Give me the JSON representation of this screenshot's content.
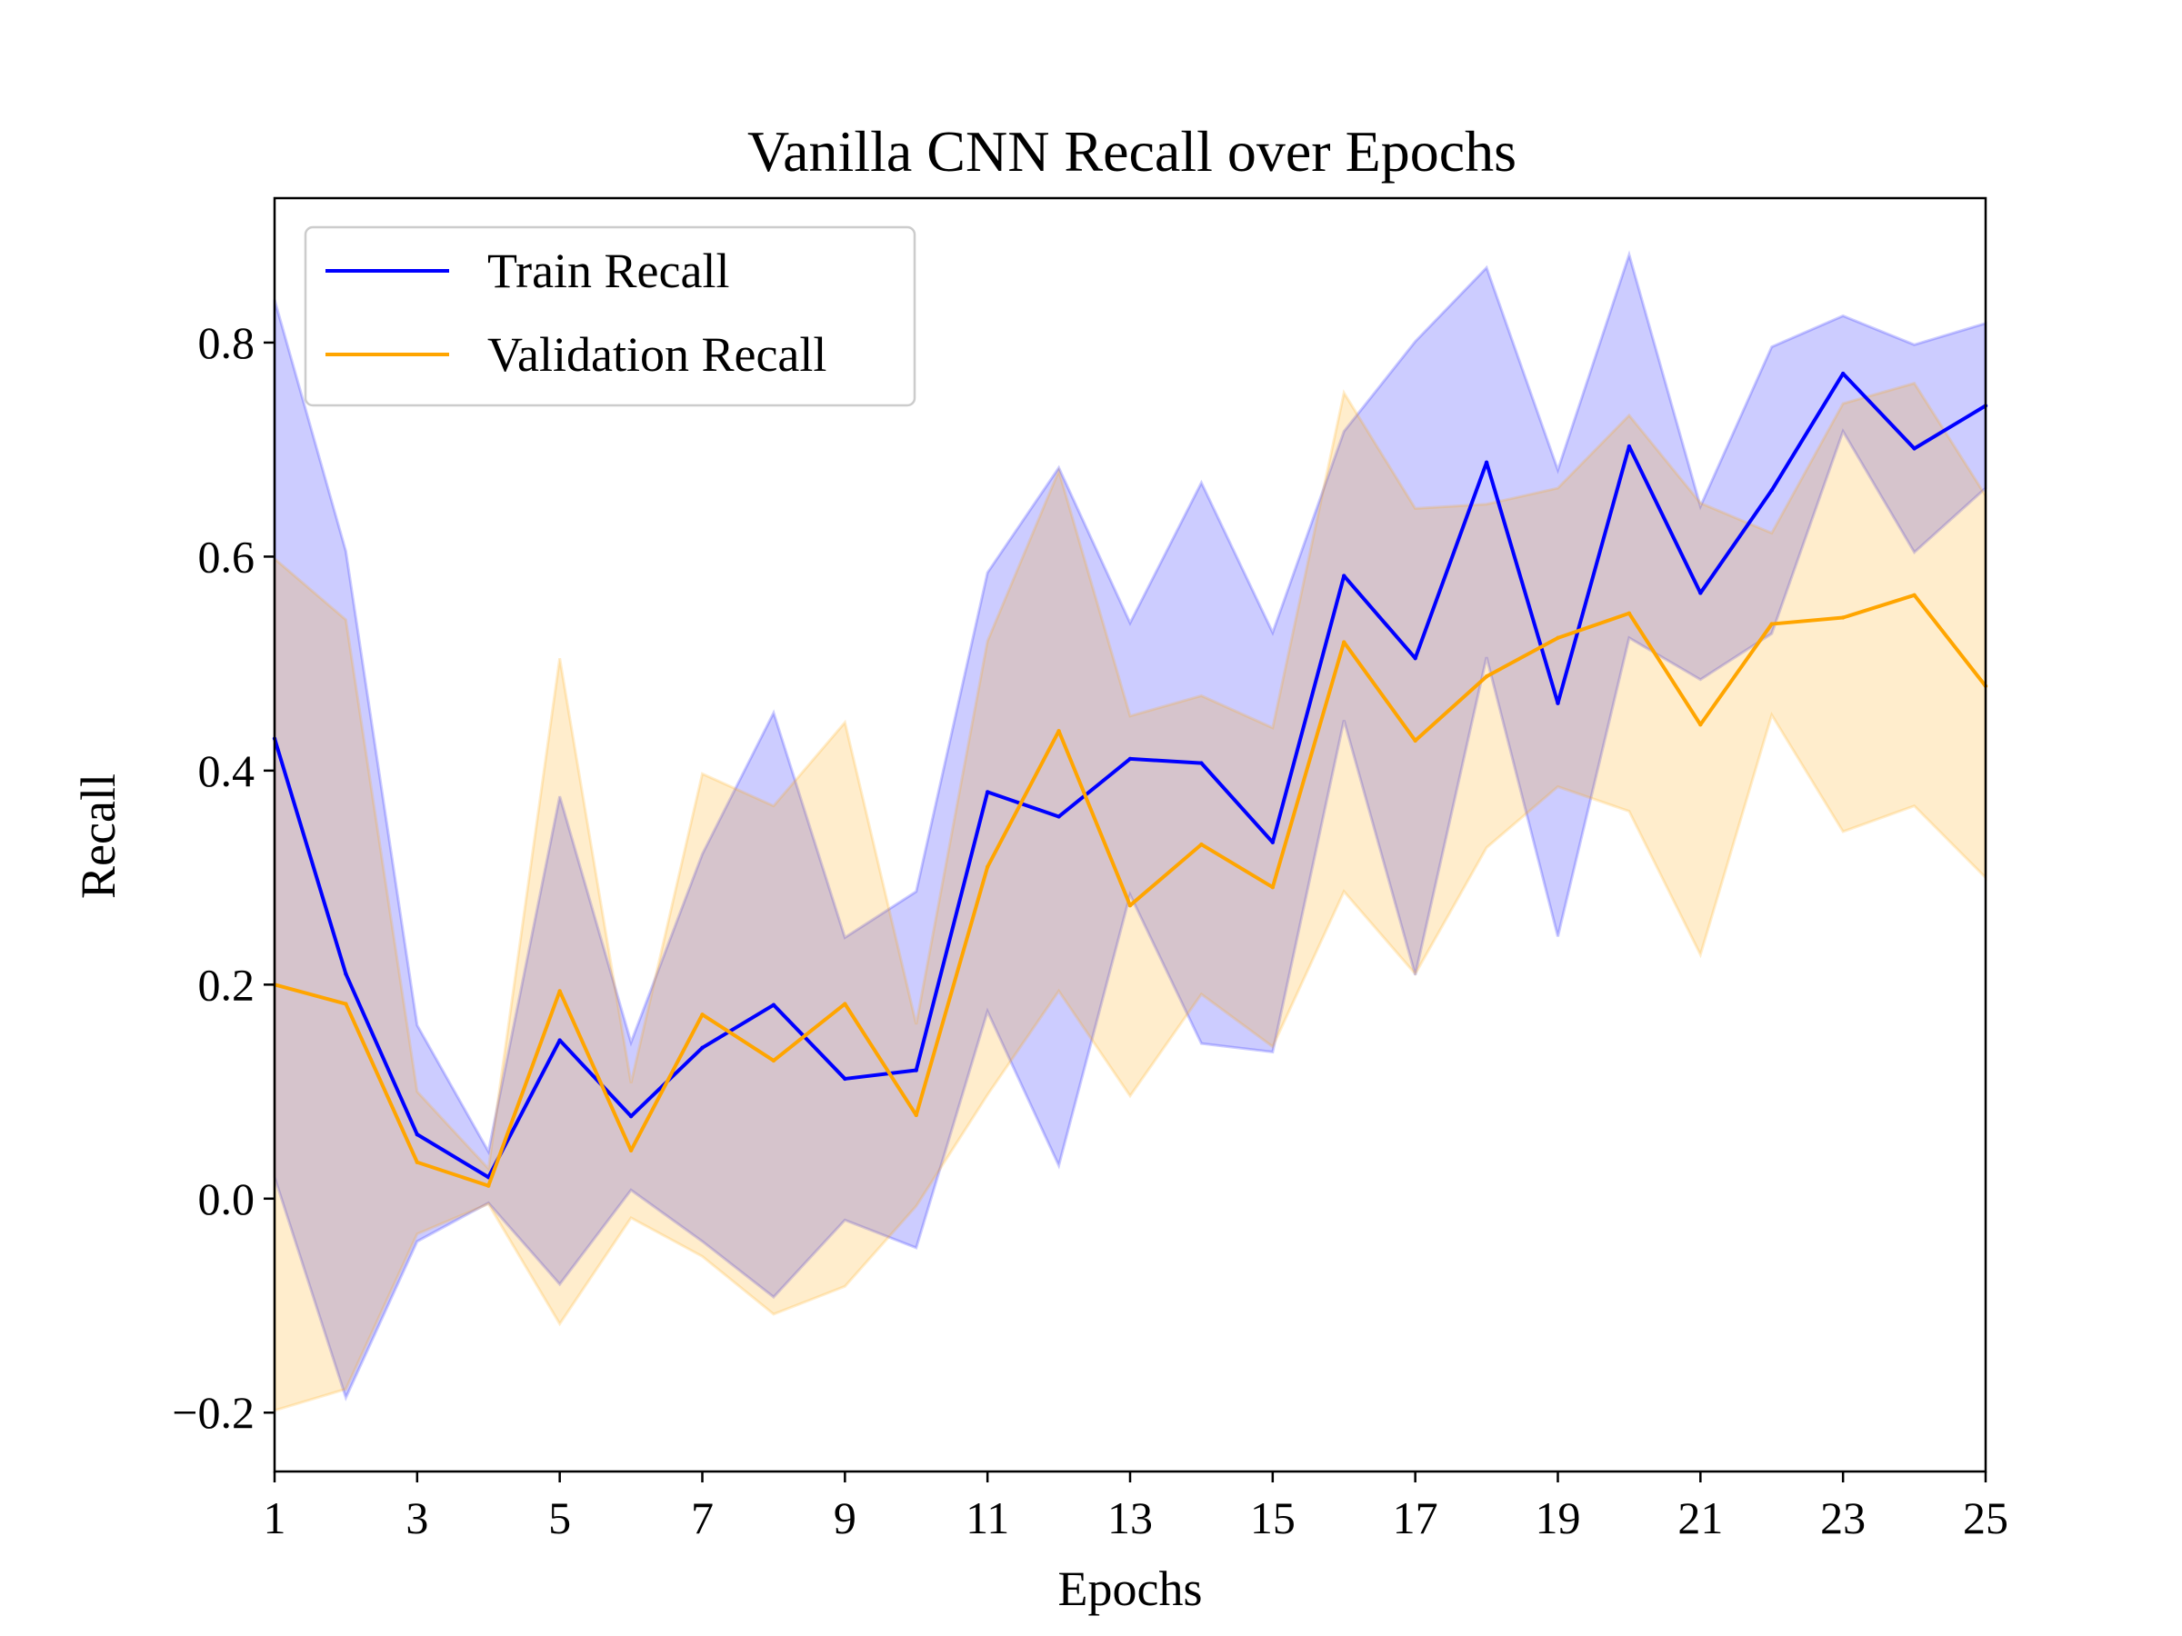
{
  "chart_data": {
    "type": "line",
    "title": "Vanilla CNN Recall over Epochs",
    "xlabel": "Epochs",
    "ylabel": "Recall",
    "xlim": [
      1,
      25
    ],
    "ylim": [
      -0.255,
      0.935
    ],
    "xticks": [
      1,
      3,
      5,
      7,
      9,
      11,
      13,
      15,
      17,
      19,
      21,
      23,
      25
    ],
    "yticks": [
      -0.2,
      0.0,
      0.2,
      0.4,
      0.6,
      0.8
    ],
    "ytick_labels": [
      "−0.2",
      "0.0",
      "0.2",
      "0.4",
      "0.6",
      "0.8"
    ],
    "grid": false,
    "legend_position": "top-left",
    "x": [
      1,
      2,
      3,
      4,
      5,
      6,
      7,
      8,
      9,
      10,
      11,
      12,
      13,
      14,
      15,
      16,
      17,
      18,
      19,
      20,
      21,
      22,
      23,
      24,
      25
    ],
    "series": [
      {
        "name": "Train Recall",
        "color": "#0000ff",
        "band_color": "#0000ff",
        "values": [
          0.43,
          0.21,
          0.06,
          0.02,
          0.148,
          0.077,
          0.141,
          0.181,
          0.112,
          0.12,
          0.38,
          0.357,
          0.411,
          0.407,
          0.333,
          0.582,
          0.505,
          0.688,
          0.463,
          0.703,
          0.566,
          0.662,
          0.771,
          0.701,
          0.741
        ],
        "upper": [
          0.84,
          0.605,
          0.162,
          0.044,
          0.376,
          0.146,
          0.322,
          0.454,
          0.244,
          0.287,
          0.585,
          0.683,
          0.538,
          0.669,
          0.529,
          0.717,
          0.801,
          0.87,
          0.681,
          0.882,
          0.647,
          0.796,
          0.825,
          0.798,
          0.818
        ],
        "lower": [
          0.02,
          -0.186,
          -0.04,
          -0.004,
          -0.08,
          0.008,
          -0.04,
          -0.092,
          -0.02,
          -0.046,
          0.175,
          0.031,
          0.284,
          0.145,
          0.137,
          0.447,
          0.209,
          0.506,
          0.245,
          0.524,
          0.485,
          0.528,
          0.717,
          0.604,
          0.664
        ]
      },
      {
        "name": "Validation Recall",
        "color": "#ffa500",
        "band_color": "#ffa500",
        "values": [
          0.2,
          0.182,
          0.034,
          0.012,
          0.194,
          0.045,
          0.172,
          0.129,
          0.182,
          0.078,
          0.31,
          0.437,
          0.274,
          0.331,
          0.291,
          0.52,
          0.428,
          0.488,
          0.524,
          0.547,
          0.443,
          0.537,
          0.543,
          0.564,
          0.479
        ],
        "upper": [
          0.598,
          0.541,
          0.1,
          0.028,
          0.505,
          0.108,
          0.397,
          0.367,
          0.445,
          0.163,
          0.521,
          0.68,
          0.451,
          0.47,
          0.44,
          0.753,
          0.645,
          0.649,
          0.664,
          0.732,
          0.65,
          0.622,
          0.743,
          0.762,
          0.657
        ],
        "lower": [
          -0.198,
          -0.178,
          -0.033,
          -0.005,
          -0.117,
          -0.018,
          -0.054,
          -0.108,
          -0.082,
          -0.007,
          0.097,
          0.194,
          0.096,
          0.191,
          0.142,
          0.287,
          0.21,
          0.328,
          0.385,
          0.362,
          0.228,
          0.452,
          0.343,
          0.367,
          0.3
        ]
      }
    ]
  }
}
